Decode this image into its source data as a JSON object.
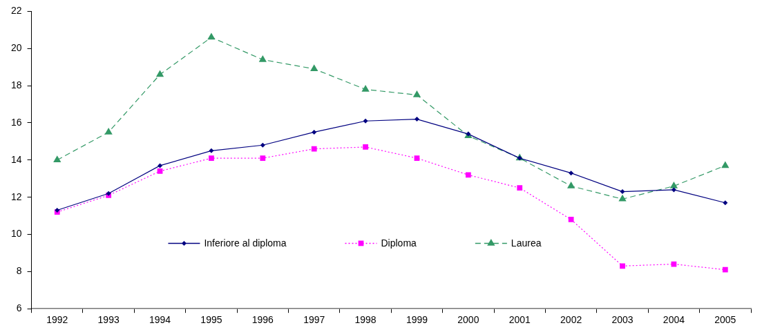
{
  "chart_data": {
    "type": "line",
    "categories": [
      "1992",
      "1993",
      "1994",
      "1995",
      "1996",
      "1997",
      "1998",
      "1999",
      "2000",
      "2001",
      "2002",
      "2003",
      "2004",
      "2005"
    ],
    "series": [
      {
        "name": "Inferiore al diploma",
        "color": "#000080",
        "marker": "diamond",
        "line_style": "solid",
        "values": [
          11.3,
          12.2,
          13.7,
          14.5,
          14.8,
          15.5,
          16.1,
          16.2,
          15.4,
          14.1,
          13.3,
          12.3,
          12.4,
          11.7
        ]
      },
      {
        "name": "Diploma",
        "color": "#ff00ff",
        "marker": "square",
        "line_style": "dotted",
        "values": [
          11.2,
          12.1,
          13.4,
          14.1,
          14.1,
          14.6,
          14.7,
          14.1,
          13.2,
          12.5,
          10.8,
          8.3,
          8.4,
          8.1
        ]
      },
      {
        "name": "Laurea",
        "color": "#339966",
        "marker": "triangle",
        "line_style": "dashed",
        "values": [
          14.0,
          15.5,
          18.6,
          20.6,
          19.4,
          18.9,
          17.8,
          17.5,
          15.3,
          14.1,
          12.6,
          11.9,
          12.6,
          13.7
        ]
      }
    ],
    "ylim": [
      6,
      22
    ],
    "yticks": [
      6,
      8,
      10,
      12,
      14,
      16,
      18,
      20,
      22
    ],
    "grid": false,
    "legend": "bottom"
  }
}
